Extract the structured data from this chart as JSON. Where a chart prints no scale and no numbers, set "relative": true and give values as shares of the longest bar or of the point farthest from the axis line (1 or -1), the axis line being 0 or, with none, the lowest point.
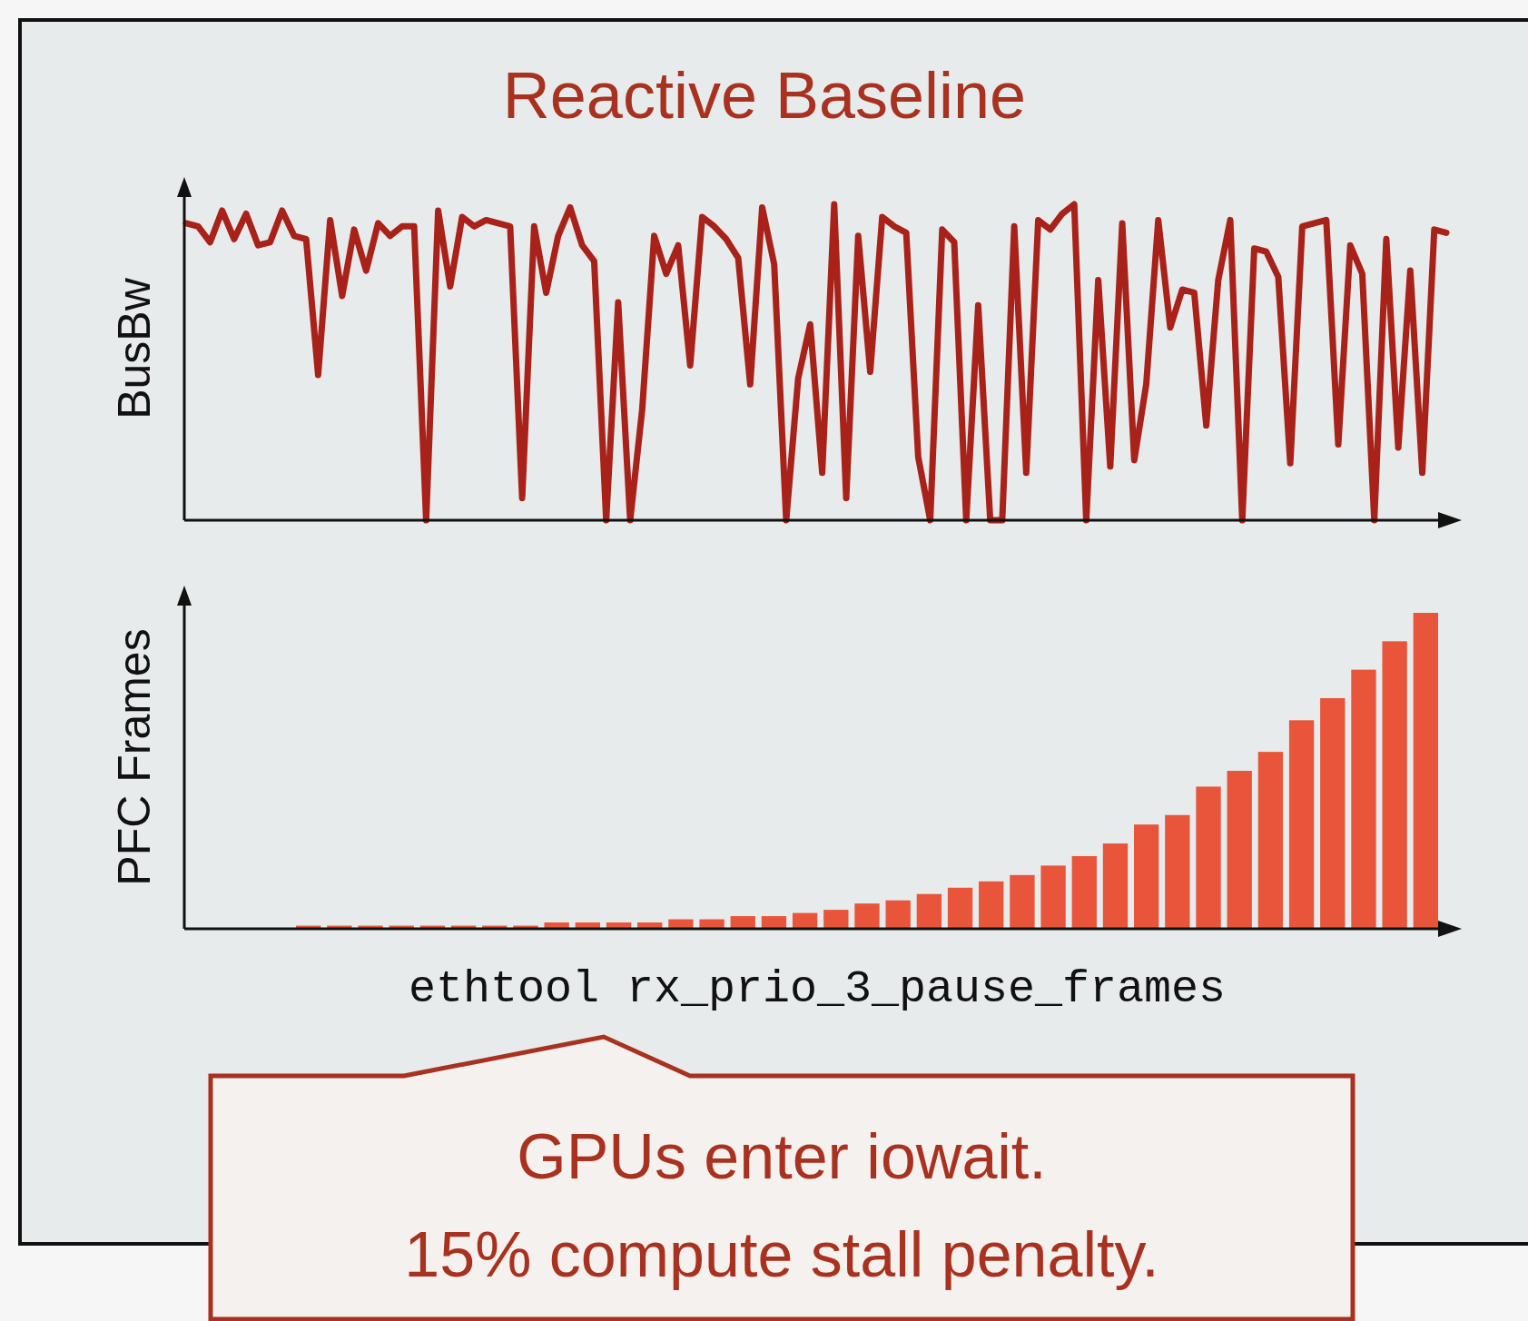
{
  "chart_data": [
    {
      "type": "line",
      "title": "Reactive Baseline",
      "ylabel": "BusBw",
      "relative": true,
      "categories": [
        null,
        null,
        null,
        null,
        null,
        null,
        null,
        null,
        null,
        null,
        null,
        null,
        null,
        null,
        null,
        null,
        null,
        null,
        null,
        null,
        null,
        null,
        null,
        null,
        null,
        null,
        null,
        null,
        null,
        null,
        null,
        null,
        null,
        null,
        null,
        null,
        null,
        null,
        null,
        null,
        null,
        null,
        null,
        null,
        null,
        null,
        null,
        null,
        null,
        null,
        null,
        null,
        null,
        null,
        null,
        null,
        null,
        null,
        null,
        null,
        null,
        null,
        null,
        null,
        null,
        null,
        null,
        null,
        null,
        null,
        null,
        null,
        null,
        null,
        null,
        null,
        null,
        null,
        null,
        null,
        null,
        null,
        null,
        null,
        null,
        null,
        null,
        null,
        null,
        null,
        null,
        null,
        null,
        null,
        null,
        null,
        null,
        null,
        null,
        null,
        null,
        null,
        null,
        null,
        null,
        null
      ],
      "series": [
        {
          "color": "#a8221a",
          "values": [
            0.94,
            0.93,
            0.88,
            0.98,
            0.89,
            0.97,
            0.87,
            0.88,
            0.98,
            0.9,
            0.89,
            0.46,
            0.95,
            0.71,
            0.92,
            0.79,
            0.94,
            0.9,
            0.93,
            0.93,
            0,
            0.98,
            0.74,
            0.96,
            0.93,
            0.95,
            0.94,
            0.93,
            0.07,
            0.93,
            0.72,
            0.9,
            0.99,
            0.87,
            0.82,
            0,
            0.69,
            0,
            0.35,
            0.9,
            0.78,
            0.87,
            0.49,
            0.96,
            0.93,
            0.89,
            0.83,
            0.43,
            0.99,
            0.81,
            0,
            0.45,
            0.62,
            0.15,
            1,
            0.07,
            0.9,
            0.47,
            0.96,
            0.93,
            0.91,
            0.2,
            0,
            0.92,
            0.88,
            0,
            0.68,
            0,
            0,
            0.93,
            0.15,
            0.95,
            0.92,
            0.97,
            1,
            0,
            0.76,
            0.17,
            0.94,
            0.19,
            0.43,
            0.95,
            0.61,
            0.73,
            0.72,
            0.3,
            0.76,
            0.95,
            0,
            0.86,
            0.85,
            0.77,
            0.18,
            0.93,
            0.94,
            0.95,
            0.24,
            0.87,
            0.78,
            0,
            0.89,
            0.23,
            0.79,
            0.15,
            0.92,
            0.91
          ]
        }
      ]
    },
    {
      "type": "bar",
      "ylabel": "PFC Frames",
      "xlabel": "ethtool rx_prio_3_pause_frames",
      "relative": true,
      "categories": [
        null,
        null,
        null,
        null,
        null,
        null,
        null,
        null,
        null,
        null,
        null,
        null,
        null,
        null,
        null,
        null,
        null,
        null,
        null,
        null,
        null,
        null,
        null,
        null,
        null,
        null,
        null,
        null,
        null,
        null,
        null,
        null,
        null,
        null,
        null,
        null,
        null
      ],
      "series": [
        {
          "color": "#e8553a",
          "values": [
            0.01,
            0.01,
            0.01,
            0.01,
            0.01,
            0.01,
            0.01,
            0.01,
            0.02,
            0.02,
            0.02,
            0.02,
            0.03,
            0.03,
            0.04,
            0.04,
            0.05,
            0.06,
            0.08,
            0.09,
            0.11,
            0.13,
            0.15,
            0.17,
            0.2,
            0.23,
            0.27,
            0.33,
            0.36,
            0.45,
            0.5,
            0.56,
            0.66,
            0.73,
            0.82,
            0.91,
            1
          ]
        }
      ],
      "annotations": [
        "GPUs enter iowait.",
        "15% compute stall penalty."
      ]
    }
  ]
}
